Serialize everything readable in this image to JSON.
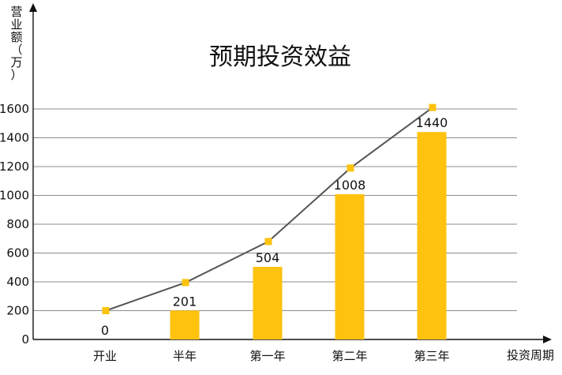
{
  "chart_data": {
    "type": "bar",
    "title": "预期投资效益",
    "ylabel_chars": [
      "营",
      "业",
      "额",
      "（",
      "万",
      "）"
    ],
    "xlabel": "投资周期",
    "categories": [
      "开业",
      "半年",
      "第一年",
      "第二年",
      "第三年"
    ],
    "ylim": [
      0,
      1600
    ],
    "yticks": [
      0,
      200,
      400,
      600,
      800,
      1000,
      1200,
      1400,
      1600
    ],
    "grid": true,
    "series": [
      {
        "values": [
          0,
          201,
          504,
          1008,
          1440
        ],
        "kind": "bar",
        "color": "#FFC20E"
      },
      {
        "values": [
          200,
          395,
          680,
          1190,
          1610
        ],
        "kind": "line",
        "color": "#555555",
        "marker_color": "#FFC20E"
      }
    ],
    "data_labels": [
      "0",
      "201",
      "504",
      "1008",
      "1440"
    ]
  }
}
